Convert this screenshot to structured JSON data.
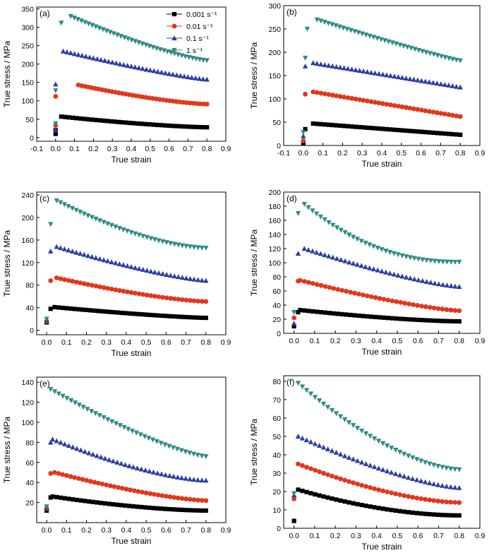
{
  "figure": {
    "legend_title": "",
    "legend": [
      {
        "label": "0.001 s⁻¹",
        "color": "#000000",
        "marker": "square"
      },
      {
        "label": "0.01 s⁻¹",
        "color": "#e2371c",
        "marker": "circle"
      },
      {
        "label": "0.1 s⁻¹",
        "color": "#2a3fa0",
        "marker": "triangle-up"
      },
      {
        "label": "1 s⁻¹",
        "color": "#2e8c86",
        "marker": "triangle-down"
      }
    ]
  },
  "chart_data": [
    {
      "panel": "(a)",
      "type": "scatter",
      "xlabel": "True strain",
      "ylabel": "True stress / MPa",
      "xlim": [
        -0.1,
        0.9
      ],
      "ylim": [
        -10,
        355
      ],
      "xticks": [
        "-0.1",
        "0.0",
        "0.1",
        "0.2",
        "0.3",
        "0.4",
        "0.5",
        "0.6",
        "0.7",
        "0.8",
        "0.9"
      ],
      "yticks": [
        "0",
        "50",
        "100",
        "150",
        "200",
        "250",
        "300",
        "350"
      ],
      "legend_position": "top-right",
      "series": [
        {
          "name": "0.001 s⁻¹",
          "initial": [
            [
              0,
              10
            ],
            [
              0,
              20
            ]
          ],
          "peak_x": 0.03,
          "peak_y": 57,
          "end_y": 28
        },
        {
          "name": "0.01 s⁻¹",
          "initial": [
            [
              0,
              33
            ],
            [
              0,
              112
            ]
          ],
          "peak_x": 0.12,
          "peak_y": 143,
          "end_y": 91
        },
        {
          "name": "0.1 s⁻¹",
          "initial": [
            [
              0,
              20
            ],
            [
              0,
              145
            ]
          ],
          "peak_x": 0.04,
          "peak_y": 235,
          "end_y": 158
        },
        {
          "name": "1 s⁻¹",
          "initial": [
            [
              0,
              38
            ],
            [
              0,
              128
            ],
            [
              0.03,
              312
            ]
          ],
          "peak_x": 0.08,
          "peak_y": 330,
          "end_y": 210
        }
      ]
    },
    {
      "panel": "(b)",
      "type": "scatter",
      "xlabel": "True strain",
      "ylabel": "True stress / MPa",
      "xlim": [
        -0.1,
        0.9
      ],
      "ylim": [
        0,
        300
      ],
      "xticks": [
        "-0.1",
        "0.0",
        "0.1",
        "0.2",
        "0.3",
        "0.4",
        "0.5",
        "0.6",
        "0.7",
        "0.8",
        "0.9"
      ],
      "yticks": [
        "0",
        "50",
        "100",
        "150",
        "200",
        "250",
        "300"
      ],
      "series": [
        {
          "name": "0.001 s⁻¹",
          "initial": [
            [
              0,
              5
            ],
            [
              0.01,
              35
            ]
          ],
          "peak_x": 0.05,
          "peak_y": 47,
          "end_y": 23
        },
        {
          "name": "0.01 s⁻¹",
          "initial": [
            [
              0,
              10
            ],
            [
              0.01,
              110
            ]
          ],
          "peak_x": 0.05,
          "peak_y": 115,
          "end_y": 62
        },
        {
          "name": "0.1 s⁻¹",
          "initial": [
            [
              0,
              20
            ],
            [
              0.01,
              170
            ]
          ],
          "peak_x": 0.05,
          "peak_y": 177,
          "end_y": 125
        },
        {
          "name": "1 s⁻¹",
          "initial": [
            [
              0,
              28
            ],
            [
              0.01,
              188
            ],
            [
              0.02,
              250
            ]
          ],
          "peak_x": 0.07,
          "peak_y": 270,
          "end_y": 182
        }
      ]
    },
    {
      "panel": "(c)",
      "type": "scatter",
      "xlabel": "True strain",
      "ylabel": "True stress / MPa",
      "xlim": [
        -0.05,
        0.9
      ],
      "ylim": [
        -8,
        245
      ],
      "xticks": [
        "0.0",
        "0.1",
        "0.2",
        "0.3",
        "0.4",
        "0.5",
        "0.6",
        "0.7",
        "0.8",
        "0.9"
      ],
      "yticks": [
        "0",
        "40",
        "80",
        "120",
        "160",
        "200",
        "240"
      ],
      "series": [
        {
          "name": "0.001 s⁻¹",
          "initial": [
            [
              0,
              14
            ],
            [
              0.02,
              38
            ]
          ],
          "peak_x": 0.04,
          "peak_y": 41,
          "end_y": 22
        },
        {
          "name": "0.01 s⁻¹",
          "initial": [
            [
              0,
              16
            ],
            [
              0.02,
              88
            ]
          ],
          "peak_x": 0.05,
          "peak_y": 93,
          "end_y": 51
        },
        {
          "name": "0.1 s⁻¹",
          "initial": [
            [
              0,
              18
            ],
            [
              0.02,
              140
            ]
          ],
          "peak_x": 0.05,
          "peak_y": 148,
          "end_y": 88
        },
        {
          "name": "1 s⁻¹",
          "initial": [
            [
              0,
              20
            ],
            [
              0.02,
              188
            ]
          ],
          "peak_x": 0.05,
          "peak_y": 230,
          "end_y": 146
        }
      ]
    },
    {
      "panel": "(d)",
      "type": "scatter",
      "xlabel": "True strain",
      "ylabel": "True stress / MPa",
      "xlim": [
        -0.05,
        0.9
      ],
      "ylim": [
        0,
        200
      ],
      "xticks": [
        "0.0",
        "0.1",
        "0.2",
        "0.3",
        "0.4",
        "0.5",
        "0.6",
        "0.7",
        "0.8",
        "0.9"
      ],
      "yticks": [
        "0",
        "20",
        "40",
        "60",
        "80",
        "100",
        "120",
        "140",
        "160",
        "180",
        "200"
      ],
      "series": [
        {
          "name": "0.001 s⁻¹",
          "initial": [
            [
              0,
              10
            ],
            [
              0.02,
              30
            ]
          ],
          "peak_x": 0.03,
          "peak_y": 33,
          "end_y": 17
        },
        {
          "name": "0.01 s⁻¹",
          "initial": [
            [
              0,
              22
            ],
            [
              0.02,
              74
            ]
          ],
          "peak_x": 0.03,
          "peak_y": 75,
          "end_y": 32
        },
        {
          "name": "0.1 s⁻¹",
          "initial": [
            [
              0,
              14
            ],
            [
              0.02,
              113
            ]
          ],
          "peak_x": 0.05,
          "peak_y": 120,
          "end_y": 66
        },
        {
          "name": "1 s⁻¹",
          "initial": [
            [
              0,
              30
            ],
            [
              0.02,
              170
            ]
          ],
          "peak_x": 0.05,
          "peak_y": 183,
          "end_y": 101
        }
      ]
    },
    {
      "panel": "(e)",
      "type": "scatter",
      "xlabel": "True strain",
      "ylabel": "True stress / MPa",
      "xlim": [
        -0.05,
        0.9
      ],
      "ylim": [
        0,
        145
      ],
      "xticks": [
        "0.0",
        "0.1",
        "0.2",
        "0.3",
        "0.4",
        "0.5",
        "0.6",
        "0.7",
        "0.8",
        "0.9"
      ],
      "yticks": [
        "20",
        "40",
        "60",
        "80",
        "100",
        "120",
        "140"
      ],
      "series": [
        {
          "name": "0.001 s⁻¹",
          "initial": [
            [
              0,
              12
            ],
            [
              0.02,
              25
            ]
          ],
          "peak_x": 0.03,
          "peak_y": 26,
          "end_y": 12
        },
        {
          "name": "0.01 s⁻¹",
          "initial": [
            [
              0,
              14
            ],
            [
              0.02,
              49
            ]
          ],
          "peak_x": 0.04,
          "peak_y": 50,
          "end_y": 22
        },
        {
          "name": "0.1 s⁻¹",
          "initial": [
            [
              0,
              15
            ],
            [
              0.02,
              80
            ]
          ],
          "peak_x": 0.03,
          "peak_y": 83,
          "end_y": 42
        },
        {
          "name": "1 s⁻¹",
          "initial": [
            [
              0,
              16
            ]
          ],
          "peak_x": 0.02,
          "peak_y": 133,
          "end_y": 66
        }
      ]
    },
    {
      "panel": "(f)",
      "type": "scatter",
      "xlabel": "True strain",
      "ylabel": "True stress / MPa",
      "xlim": [
        -0.05,
        0.9
      ],
      "ylim": [
        0,
        83
      ],
      "xticks": [
        "0.0",
        "0.1",
        "0.2",
        "0.3",
        "0.4",
        "0.5",
        "0.6",
        "0.7",
        "0.8",
        "0.9"
      ],
      "yticks": [
        "0",
        "10",
        "20",
        "30",
        "40",
        "50",
        "60",
        "70",
        "80"
      ],
      "series": [
        {
          "name": "0.001 s⁻¹",
          "initial": [
            [
              0,
              4
            ]
          ],
          "peak_x": 0.02,
          "peak_y": 21,
          "end_y": 7
        },
        {
          "name": "0.01 s⁻¹",
          "initial": [
            [
              0,
              16
            ]
          ],
          "peak_x": 0.02,
          "peak_y": 35,
          "end_y": 14
        },
        {
          "name": "0.1 s⁻¹",
          "initial": [
            [
              0,
              18
            ]
          ],
          "peak_x": 0.02,
          "peak_y": 50,
          "end_y": 22
        },
        {
          "name": "1 s⁻¹",
          "initial": [
            [
              0,
              19
            ]
          ],
          "peak_x": 0.02,
          "peak_y": 79,
          "end_y": 32
        }
      ]
    }
  ]
}
